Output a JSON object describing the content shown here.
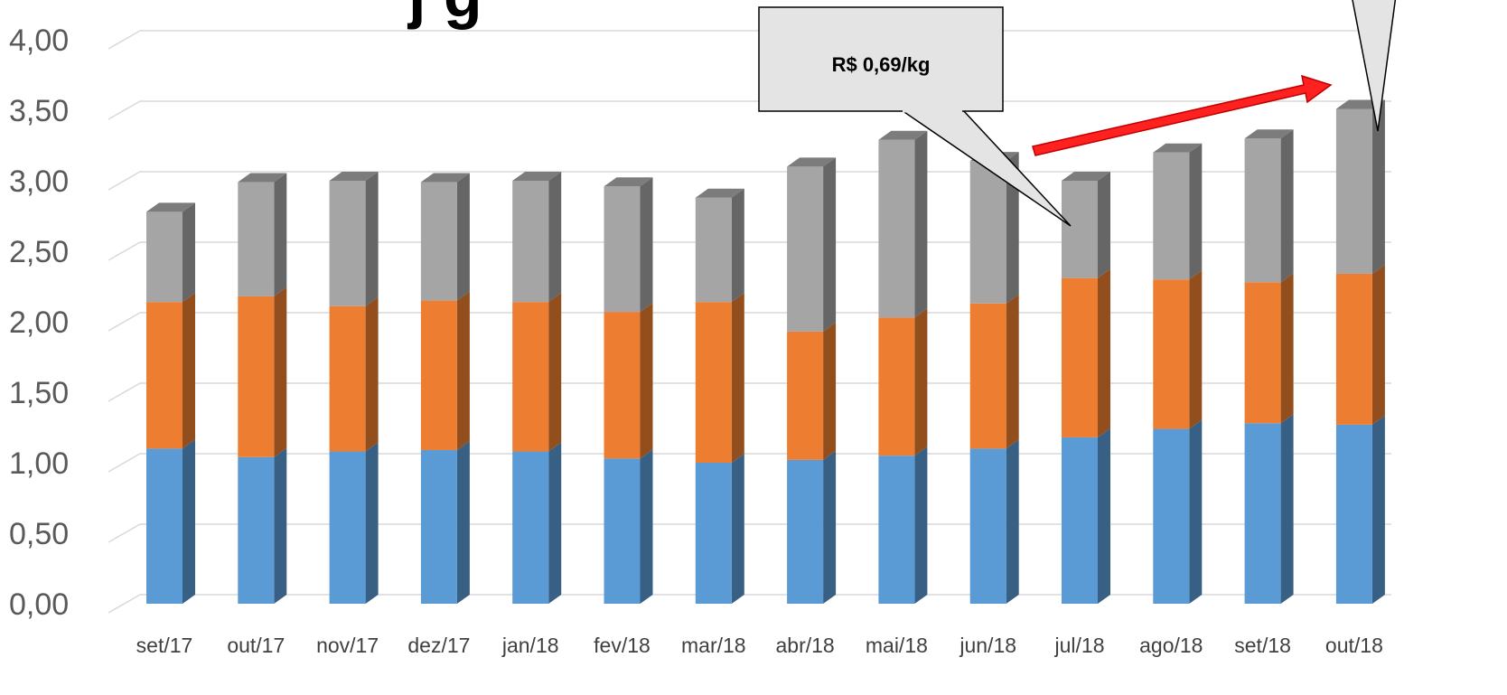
{
  "chart_data": {
    "type": "bar",
    "stacked": true,
    "style": "3d-column",
    "categories": [
      "set/17",
      "out/17",
      "nov/17",
      "dez/17",
      "jan/18",
      "fev/18",
      "mar/18",
      "abr/18",
      "mai/18",
      "jun/18",
      "jul/18",
      "ago/18",
      "set/18",
      "out/18"
    ],
    "series": [
      {
        "color": "#5b9bd5",
        "values": [
          1.1,
          1.04,
          1.08,
          1.09,
          1.08,
          1.03,
          1.0,
          1.02,
          1.05,
          1.1,
          1.18,
          1.24,
          1.28,
          1.27
        ]
      },
      {
        "color": "#ed7d31",
        "values": [
          1.04,
          1.14,
          1.03,
          1.06,
          1.06,
          1.04,
          1.14,
          0.91,
          0.98,
          1.03,
          1.13,
          1.06,
          1.0,
          1.07
        ]
      },
      {
        "color": "#a5a5a5",
        "values": [
          0.64,
          0.81,
          0.89,
          0.84,
          0.86,
          0.89,
          0.74,
          1.17,
          1.26,
          1.01,
          0.69,
          0.9,
          1.02,
          1.17
        ]
      }
    ],
    "ylim": [
      0,
      4
    ],
    "yticks": [
      "0,00",
      "0,50",
      "1,00",
      "1,50",
      "2,00",
      "2,50",
      "3,00",
      "3,50",
      "4,00"
    ],
    "grid": true,
    "annotations": [
      {
        "type": "callout",
        "text": "R$ 0,69/kg",
        "target_category": "jul/18"
      },
      {
        "type": "callout",
        "text": "",
        "target_category": "out/18"
      },
      {
        "type": "arrow",
        "color": "#ff0000",
        "from_category": "jul/18",
        "to_category": "out/18"
      }
    ],
    "title_fragment": "j  g"
  }
}
